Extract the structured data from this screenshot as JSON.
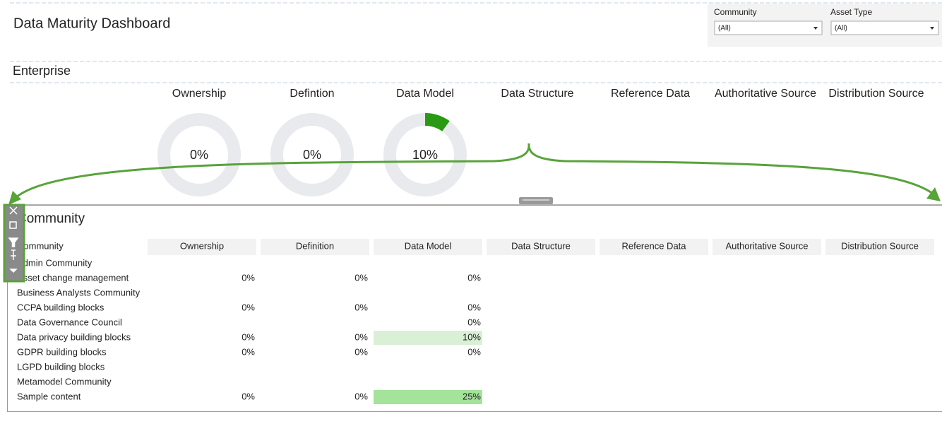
{
  "header": {
    "title": "Data Maturity Dashboard"
  },
  "filters": [
    {
      "label": "Community",
      "value": "(All)"
    },
    {
      "label": "Asset Type",
      "value": "(All)"
    }
  ],
  "enterprise": {
    "title": "Enterprise",
    "gauges": [
      {
        "name": "Ownership",
        "value": 0,
        "label": "0%"
      },
      {
        "name": "Defintion",
        "value": 0,
        "label": "0%"
      },
      {
        "name": "Data Model",
        "value": 10,
        "label": "10%"
      },
      {
        "name": "Data Structure"
      },
      {
        "name": "Reference Data"
      },
      {
        "name": "Authoritative Source"
      },
      {
        "name": "Distribution Source"
      }
    ],
    "arc_color": "#2a9a14",
    "track_color": "#e8eaed"
  },
  "community": {
    "title": "Community"
  },
  "table": {
    "columns": [
      "Community",
      "Ownership",
      "Definition",
      "Data Model",
      "Data Structure",
      "Reference Data",
      "Authoritative Source",
      "Distribution Source"
    ],
    "rows": [
      [
        "Admin Community",
        null,
        null,
        null
      ],
      [
        "Asset change management",
        "0%",
        "0%",
        "0%"
      ],
      [
        "Business Analysts Community",
        null,
        null,
        null
      ],
      [
        "CCPA building blocks",
        "0%",
        "0%",
        "0%"
      ],
      [
        "Data Governance Council",
        null,
        null,
        "0%"
      ],
      [
        "Data privacy building blocks",
        "0%",
        "0%",
        {
          "text": "10%",
          "color": "#d9f0d6"
        }
      ],
      [
        "GDPR building blocks",
        "0%",
        "0%",
        "0%"
      ],
      [
        "LGPD building blocks",
        null,
        null,
        null
      ],
      [
        "Metamodel Community",
        null,
        null,
        null
      ],
      [
        "Sample content",
        "0%",
        "0%",
        {
          "text": "25%",
          "color": "#a3e39a"
        }
      ]
    ]
  }
}
